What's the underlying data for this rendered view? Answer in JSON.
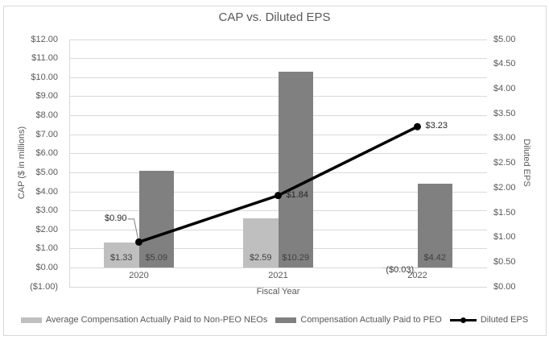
{
  "chart_data": {
    "type": "combo-bar-line",
    "title": "CAP vs. Diluted EPS",
    "categories": [
      "2020",
      "2021",
      "2022"
    ],
    "series": [
      {
        "name": "Average Compensation Actually Paid to Non-PEO NEOs",
        "type": "bar",
        "axis": "left",
        "color": "#BFBFBF",
        "values": [
          1.33,
          2.59,
          -0.03
        ],
        "data_labels": [
          "$1.33",
          "$2.59",
          "($0.03)"
        ]
      },
      {
        "name": "Compensation Actually Paid to PEO",
        "type": "bar",
        "axis": "left",
        "color": "#808080",
        "values": [
          5.09,
          10.29,
          4.42
        ],
        "data_labels": [
          "$5.09",
          "$10.29",
          "$4.42"
        ]
      },
      {
        "name": "Diluted EPS",
        "type": "line",
        "axis": "right",
        "color": "#000000",
        "values": [
          0.9,
          1.84,
          3.23
        ],
        "data_labels": [
          "$0.90",
          "$1.84",
          "$3.23"
        ],
        "label_positions": [
          "left-leader",
          "right",
          "right"
        ]
      }
    ],
    "xlabel": "Fiscal Year",
    "left_axis": {
      "title": "CAP ($ in millions)",
      "min": -1,
      "max": 12,
      "step": 1,
      "ticks_top_to_bottom": [
        "$12.00",
        "$11.00",
        "$10.00",
        "$9.00",
        "$8.00",
        "$7.00",
        "$6.00",
        "$5.00",
        "$4.00",
        "$3.00",
        "$2.00",
        "$1.00",
        "$0.00",
        "($1.00)"
      ]
    },
    "right_axis": {
      "title": "Diluted EPS",
      "min": 0,
      "max": 5,
      "step": 0.5,
      "ticks_top_to_bottom": [
        "$5.00",
        "$4.50",
        "$4.00",
        "$3.50",
        "$3.00",
        "$2.50",
        "$2.00",
        "$1.50",
        "$1.00",
        "$0.50",
        "$0.00"
      ]
    },
    "grid": true,
    "legend_position": "bottom"
  },
  "colors": {
    "background": "#FFFFFF",
    "border": "#D9D9D9",
    "gridline": "#D9D9D9",
    "axis_text": "#595959",
    "title_text": "#595959",
    "bar_label_text": "#404040",
    "bar_light": "#BFBFBF",
    "bar_dark": "#808080",
    "line": "#000000"
  }
}
